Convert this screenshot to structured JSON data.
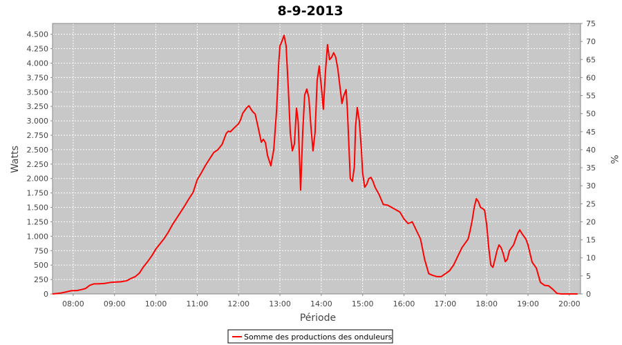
{
  "chart_data": {
    "type": "line",
    "title": "8-9-2013",
    "xlabel": "Période",
    "ylabel": "Watts",
    "ylabel_right": "%",
    "xlim": [
      7.5,
      20.27
    ],
    "ylim": [
      0,
      4687
    ],
    "ylim_right": [
      0,
      75
    ],
    "x_ticks": [
      8,
      9,
      10,
      11,
      12,
      13,
      14,
      15,
      16,
      17,
      18,
      19,
      20
    ],
    "x_tick_labels": [
      "08:00",
      "09:00",
      "10:00",
      "11:00",
      "12:00",
      "13:00",
      "14:00",
      "15:00",
      "16:00",
      "17:00",
      "18:00",
      "19:00",
      "20:00"
    ],
    "y_ticks": [
      0,
      250,
      500,
      750,
      1000,
      1250,
      1500,
      1750,
      2000,
      2250,
      2500,
      2750,
      3000,
      3250,
      3500,
      3750,
      4000,
      4250,
      4500
    ],
    "y_tick_labels": [
      "0",
      "250",
      "500",
      "750",
      "1.000",
      "1.250",
      "1.500",
      "1.750",
      "2.000",
      "2.250",
      "2.500",
      "2.750",
      "3.000",
      "3.250",
      "3.500",
      "3.750",
      "4.000",
      "4.250",
      "4.500"
    ],
    "y_right_ticks": [
      0,
      5,
      10,
      15,
      20,
      25,
      30,
      35,
      40,
      45,
      50,
      55,
      60,
      65,
      70,
      75
    ],
    "y_right_tick_labels": [
      "0",
      "5",
      "10",
      "15",
      "20",
      "25",
      "30",
      "35",
      "40",
      "45",
      "50",
      "55",
      "60",
      "65",
      "70",
      "75"
    ],
    "grid": true,
    "legend_position": "bottom-center",
    "colors": {
      "line": "#ff0000",
      "plot_background": "#c8c8c8",
      "grid": "#ffffff"
    },
    "series": [
      {
        "name": "Somme des productions des onduleurs",
        "x": [
          7.5,
          7.7,
          7.8,
          7.95,
          8.1,
          8.2,
          8.3,
          8.4,
          8.5,
          8.6,
          8.75,
          8.9,
          9.0,
          9.15,
          9.3,
          9.4,
          9.5,
          9.6,
          9.7,
          9.8,
          9.9,
          10.0,
          10.1,
          10.2,
          10.3,
          10.4,
          10.5,
          10.6,
          10.7,
          10.8,
          10.9,
          11.0,
          11.1,
          11.2,
          11.3,
          11.4,
          11.5,
          11.6,
          11.7,
          11.75,
          11.8,
          11.9,
          12.0,
          12.05,
          12.1,
          12.15,
          12.2,
          12.25,
          12.3,
          12.35,
          12.4,
          12.47,
          12.55,
          12.6,
          12.65,
          12.7,
          12.78,
          12.85,
          12.92,
          12.97,
          13.0,
          13.05,
          13.1,
          13.15,
          13.2,
          13.25,
          13.3,
          13.35,
          13.4,
          13.44,
          13.47,
          13.5,
          13.55,
          13.6,
          13.65,
          13.7,
          13.75,
          13.8,
          13.85,
          13.9,
          13.95,
          14.0,
          14.05,
          14.1,
          14.15,
          14.2,
          14.25,
          14.3,
          14.35,
          14.4,
          14.45,
          14.5,
          14.55,
          14.6,
          14.63,
          14.66,
          14.7,
          14.75,
          14.8,
          14.83,
          14.87,
          14.92,
          14.97,
          15.0,
          15.05,
          15.1,
          15.15,
          15.2,
          15.25,
          15.3,
          15.4,
          15.5,
          15.6,
          15.7,
          15.8,
          15.9,
          16.0,
          16.1,
          16.2,
          16.3,
          16.4,
          16.5,
          16.6,
          16.7,
          16.8,
          16.9,
          17.0,
          17.1,
          17.2,
          17.3,
          17.4,
          17.5,
          17.55,
          17.6,
          17.65,
          17.7,
          17.75,
          17.8,
          17.85,
          17.9,
          17.95,
          18.0,
          18.05,
          18.1,
          18.15,
          18.2,
          18.25,
          18.3,
          18.35,
          18.4,
          18.45,
          18.5,
          18.55,
          18.6,
          18.65,
          18.7,
          18.75,
          18.8,
          18.85,
          18.9,
          18.95,
          19.0,
          19.05,
          19.1,
          19.2,
          19.3,
          19.4,
          19.5,
          19.6,
          19.7,
          19.8,
          19.9,
          20.0,
          20.1,
          20.2
        ],
        "values": [
          0,
          15,
          30,
          55,
          60,
          75,
          95,
          150,
          175,
          175,
          180,
          200,
          205,
          210,
          230,
          270,
          300,
          360,
          470,
          560,
          660,
          780,
          870,
          960,
          1070,
          1200,
          1310,
          1420,
          1530,
          1650,
          1760,
          1980,
          2100,
          2230,
          2340,
          2450,
          2500,
          2590,
          2780,
          2820,
          2810,
          2880,
          2950,
          3020,
          3130,
          3180,
          3230,
          3260,
          3200,
          3150,
          3120,
          2900,
          2630,
          2680,
          2620,
          2400,
          2220,
          2500,
          3200,
          4000,
          4300,
          4380,
          4480,
          4300,
          3600,
          2800,
          2480,
          2600,
          3220,
          3000,
          2400,
          1800,
          2800,
          3450,
          3550,
          3400,
          2900,
          2480,
          2800,
          3700,
          3950,
          3600,
          3200,
          3850,
          4320,
          4060,
          4100,
          4180,
          4100,
          3900,
          3600,
          3300,
          3450,
          3540,
          3200,
          2700,
          2000,
          1950,
          2200,
          2900,
          3230,
          3000,
          2500,
          2100,
          1850,
          1900,
          2000,
          2020,
          1950,
          1850,
          1720,
          1550,
          1540,
          1500,
          1460,
          1420,
          1300,
          1220,
          1250,
          1100,
          950,
          600,
          350,
          320,
          300,
          300,
          350,
          400,
          500,
          650,
          800,
          900,
          950,
          1100,
          1280,
          1500,
          1650,
          1600,
          1500,
          1480,
          1450,
          1200,
          800,
          500,
          460,
          600,
          750,
          850,
          800,
          700,
          560,
          600,
          750,
          800,
          850,
          950,
          1050,
          1110,
          1050,
          1000,
          950,
          850,
          700,
          550,
          450,
          200,
          150,
          140,
          80,
          10,
          0,
          0,
          0,
          0,
          0
        ]
      }
    ]
  }
}
